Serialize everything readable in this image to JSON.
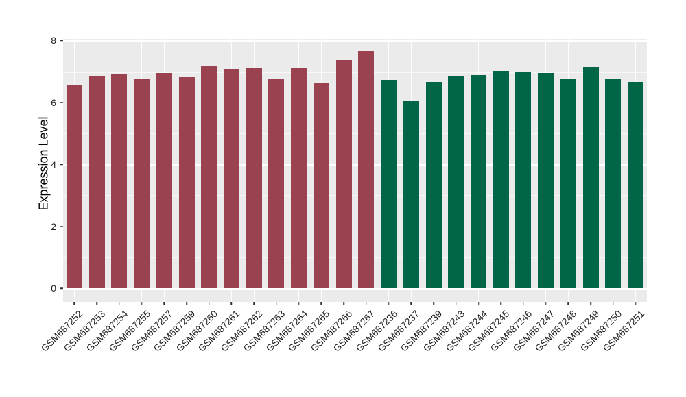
{
  "chart_data": {
    "type": "bar",
    "title": "",
    "xlabel": "",
    "ylabel": "Expression Level",
    "ylim": [
      0,
      8.04
    ],
    "yticks": [
      "0",
      "2",
      "4",
      "6",
      "8"
    ],
    "grid": true,
    "legend": "none",
    "panel_bg": "#EBEBEB",
    "gridline_color": "#FFFFFF",
    "categories": [
      "GSM687252",
      "GSM687253",
      "GSM687254",
      "GSM687255",
      "GSM687257",
      "GSM687259",
      "GSM687260",
      "GSM687261",
      "GSM687262",
      "GSM687263",
      "GSM687264",
      "GSM687265",
      "GSM687266",
      "GSM687267",
      "GSM687236",
      "GSM687237",
      "GSM687239",
      "GSM687243",
      "GSM687244",
      "GSM687245",
      "GSM687246",
      "GSM687247",
      "GSM687248",
      "GSM687249",
      "GSM687250",
      "GSM687251"
    ],
    "values": [
      6.57,
      6.85,
      6.92,
      6.74,
      6.98,
      6.84,
      7.18,
      7.09,
      7.13,
      6.76,
      7.12,
      6.64,
      7.36,
      7.66,
      6.72,
      6.04,
      6.67,
      6.85,
      6.88,
      7.01,
      7.0,
      6.94,
      6.75,
      7.15,
      6.76,
      6.65
    ],
    "bar_groups": [
      "group1",
      "group1",
      "group1",
      "group1",
      "group1",
      "group1",
      "group1",
      "group1",
      "group1",
      "group1",
      "group1",
      "group1",
      "group1",
      "group1",
      "group2",
      "group2",
      "group2",
      "group2",
      "group2",
      "group2",
      "group2",
      "group2",
      "group2",
      "group2",
      "group2",
      "group2"
    ],
    "group_colors": {
      "group1": "#9B4251",
      "group2": "#016647"
    }
  }
}
